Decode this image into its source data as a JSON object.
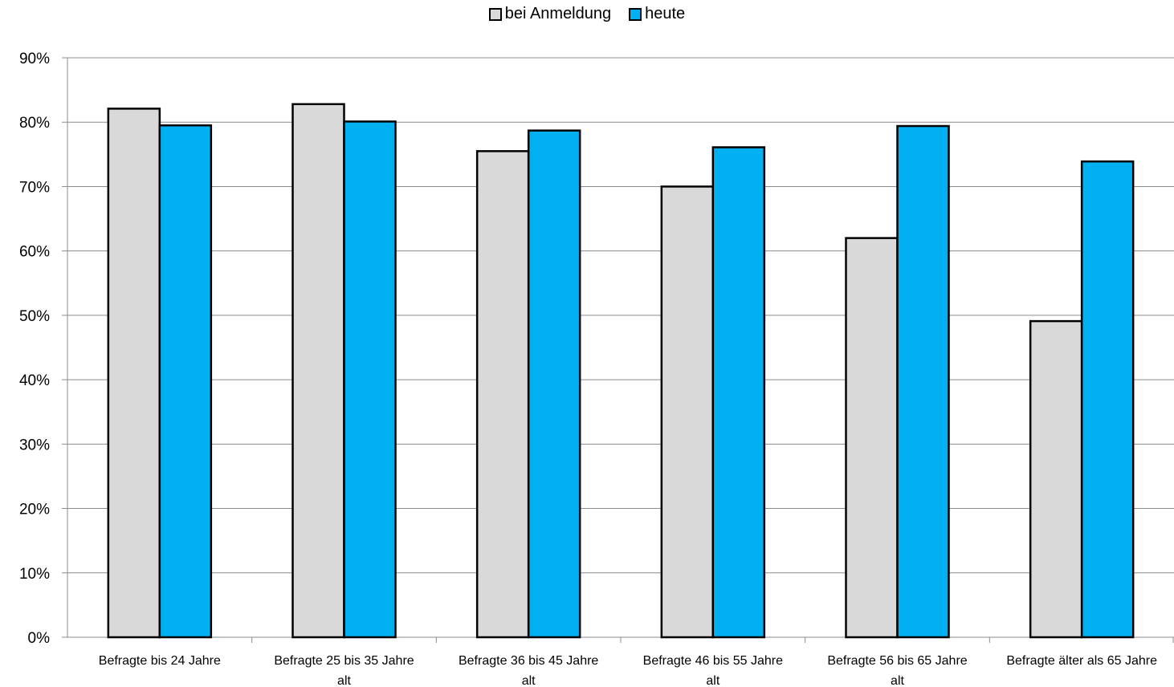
{
  "chart_data": {
    "type": "bar",
    "categories": [
      [
        "Befragte bis 24 Jahre"
      ],
      [
        "Befragte 25 bis 35 Jahre",
        "alt"
      ],
      [
        "Befragte 36 bis 45 Jahre",
        "alt"
      ],
      [
        "Befragte 46 bis 55 Jahre",
        "alt"
      ],
      [
        "Befragte 56 bis 65 Jahre",
        "alt"
      ],
      [
        "Befragte älter als 65 Jahre"
      ]
    ],
    "series": [
      {
        "name": "bei Anmeldung",
        "color": "#d9d9d9",
        "values": [
          82.1,
          82.8,
          75.5,
          70.0,
          62.0,
          49.1
        ]
      },
      {
        "name": "heute",
        "color": "#00b0f0",
        "values": [
          79.5,
          80.1,
          78.7,
          76.1,
          79.4,
          73.9
        ]
      }
    ],
    "ylim": [
      0,
      90
    ],
    "yticks": [
      "0%",
      "10%",
      "20%",
      "30%",
      "40%",
      "50%",
      "60%",
      "70%",
      "80%",
      "90%"
    ],
    "grid": true,
    "legend_position": "top"
  }
}
